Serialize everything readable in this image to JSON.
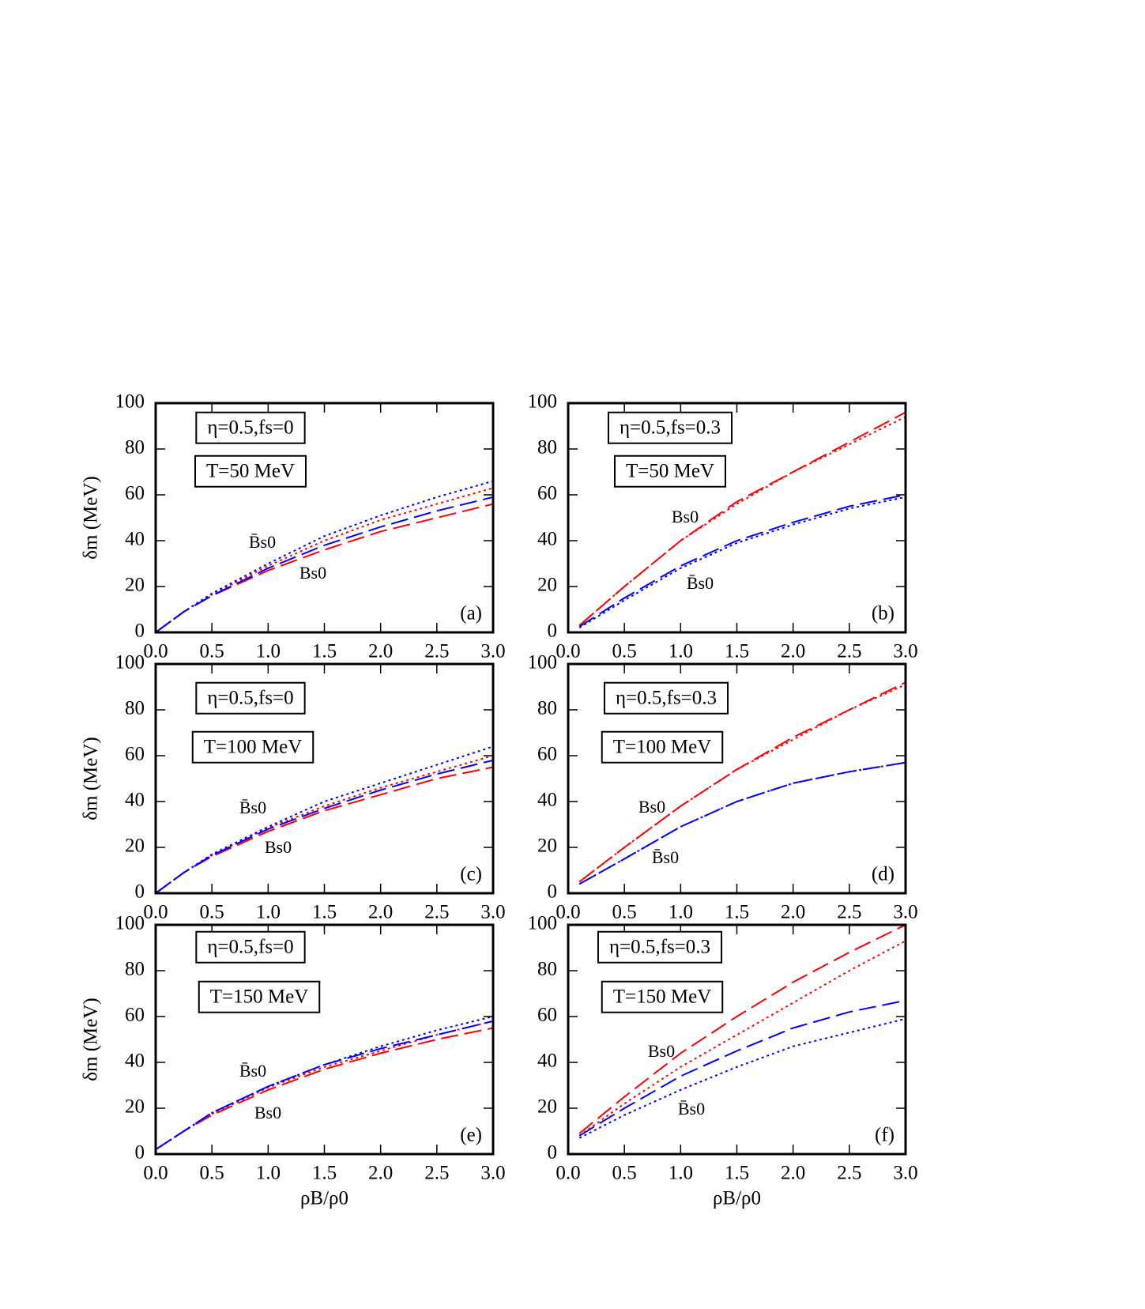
{
  "chart_data": [
    {
      "type": "line",
      "ylabel": "δm (MeV)",
      "annotations": [
        "η=0.5,fs=0",
        "T=50 MeV"
      ],
      "panel_label": "(a)",
      "curve_labels": [
        "B̄s0",
        "Bs0"
      ],
      "x": [
        0,
        0.25,
        0.5,
        1,
        1.5,
        2,
        2.5,
        3
      ],
      "xlim": [
        0,
        3
      ],
      "ylim": [
        0,
        100
      ],
      "xticks": [
        {
          "value": 0,
          "label": "0.0"
        },
        {
          "value": 0.5,
          "label": "0.5"
        },
        {
          "value": 1,
          "label": "1.0"
        },
        {
          "value": 1.5,
          "label": "1.5"
        },
        {
          "value": 2,
          "label": "2.0"
        },
        {
          "value": 2.5,
          "label": "2.5"
        },
        {
          "value": 3,
          "label": "3.0"
        }
      ],
      "yticks": [
        0,
        20,
        40,
        60,
        80,
        100
      ],
      "series": [
        {
          "color": "#ff0000",
          "dash": "dashed",
          "values": [
            0,
            9,
            16,
            27,
            36,
            44,
            50,
            56
          ]
        },
        {
          "color": "#ff0000",
          "dash": "dotted",
          "values": [
            0,
            9,
            16.5,
            29,
            40,
            49,
            56,
            63
          ]
        },
        {
          "color": "#0000ff",
          "dash": "dashed",
          "values": [
            0,
            9,
            16,
            28,
            38,
            46,
            53,
            59
          ]
        },
        {
          "color": "#0000ff",
          "dash": "dotted",
          "values": [
            0,
            9,
            17,
            30,
            42,
            51,
            59,
            66
          ]
        }
      ]
    },
    {
      "type": "line",
      "annotations": [
        "η=0.5,fs=0.3",
        "T=50 MeV"
      ],
      "panel_label": "(b)",
      "curve_labels": [
        "Bs0",
        "B̄s0"
      ],
      "x": [
        0.1,
        0.5,
        1,
        1.5,
        2,
        2.5,
        3
      ],
      "xlim": [
        0,
        3
      ],
      "ylim": [
        0,
        100
      ],
      "xticks": [
        {
          "value": 0,
          "label": "0.0"
        },
        {
          "value": 0.5,
          "label": "0.5"
        },
        {
          "value": 1,
          "label": "1.0"
        },
        {
          "value": 1.5,
          "label": "1.5"
        },
        {
          "value": 2,
          "label": "2.0"
        },
        {
          "value": 2.5,
          "label": "2.5"
        },
        {
          "value": 3,
          "label": "3.0"
        }
      ],
      "yticks": [
        0,
        20,
        40,
        60,
        80,
        100
      ],
      "series": [
        {
          "color": "#ff0000",
          "dash": "dashed",
          "values": [
            3,
            20,
            40,
            57,
            70,
            83,
            96
          ]
        },
        {
          "color": "#ff0000",
          "dash": "dotted",
          "values": [
            3,
            20,
            40,
            56,
            70,
            82,
            94
          ]
        },
        {
          "color": "#0000ff",
          "dash": "dashed",
          "values": [
            2.5,
            15,
            29,
            40,
            48,
            55,
            60
          ]
        },
        {
          "color": "#0000ff",
          "dash": "dotted",
          "values": [
            2,
            14,
            28,
            39,
            47,
            54,
            59
          ]
        }
      ]
    },
    {
      "type": "line",
      "ylabel": "δm (MeV)",
      "annotations": [
        "η=0.5,fs=0",
        "T=100 MeV"
      ],
      "panel_label": "(c)",
      "curve_labels": [
        "B̄s0",
        "Bs0"
      ],
      "x": [
        0,
        0.25,
        0.5,
        1,
        1.5,
        2,
        2.5,
        3
      ],
      "xlim": [
        0,
        3
      ],
      "ylim": [
        0,
        100
      ],
      "xticks": [
        {
          "value": 0,
          "label": "0.0"
        },
        {
          "value": 0.5,
          "label": "0.5"
        },
        {
          "value": 1,
          "label": "1.0"
        },
        {
          "value": 1.5,
          "label": "1.5"
        },
        {
          "value": 2,
          "label": "2.0"
        },
        {
          "value": 2.5,
          "label": "2.5"
        },
        {
          "value": 3,
          "label": "3.0"
        }
      ],
      "yticks": [
        0,
        20,
        40,
        60,
        80,
        100
      ],
      "series": [
        {
          "color": "#ff0000",
          "dash": "dashed",
          "values": [
            0,
            9,
            16,
            27,
            36,
            43,
            50,
            55
          ]
        },
        {
          "color": "#ff0000",
          "dash": "dotted",
          "values": [
            0,
            9,
            16.5,
            28.5,
            38,
            46,
            53,
            60
          ]
        },
        {
          "color": "#0000ff",
          "dash": "dashed",
          "values": [
            0,
            9,
            16.5,
            28,
            37,
            45,
            52,
            58
          ]
        },
        {
          "color": "#0000ff",
          "dash": "dotted",
          "values": [
            0,
            9,
            17,
            29,
            40,
            48,
            56,
            64
          ]
        }
      ]
    },
    {
      "type": "line",
      "annotations": [
        "η=0.5,fs=0.3",
        "T=100 MeV"
      ],
      "panel_label": "(d)",
      "curve_labels": [
        "Bs0",
        "B̄s0"
      ],
      "x": [
        0.1,
        0.5,
        1,
        1.5,
        2,
        2.5,
        3
      ],
      "xlim": [
        0,
        3
      ],
      "ylim": [
        0,
        100
      ],
      "xticks": [
        {
          "value": 0,
          "label": "0.0"
        },
        {
          "value": 0.5,
          "label": "0.5"
        },
        {
          "value": 1,
          "label": "1.0"
        },
        {
          "value": 1.5,
          "label": "1.5"
        },
        {
          "value": 2,
          "label": "2.0"
        },
        {
          "value": 2.5,
          "label": "2.5"
        },
        {
          "value": 3,
          "label": "3.0"
        }
      ],
      "yticks": [
        0,
        20,
        40,
        60,
        80,
        100
      ],
      "series": [
        {
          "color": "#ff0000",
          "dash": "dashed",
          "values": [
            5,
            20,
            38,
            54,
            68,
            80,
            92
          ]
        },
        {
          "color": "#ff0000",
          "dash": "dotted",
          "values": [
            5,
            20,
            38,
            54,
            67,
            80,
            91
          ]
        },
        {
          "color": "#0000ff",
          "dash": "dashed",
          "values": [
            4,
            15,
            29,
            40,
            48,
            53,
            57
          ]
        },
        {
          "color": "#0000ff",
          "dash": "dotted",
          "values": [
            4,
            15,
            29,
            40,
            48,
            53,
            57
          ]
        }
      ]
    },
    {
      "type": "line",
      "ylabel": "δm (MeV)",
      "xlabel": "ρB/ρ0",
      "annotations": [
        "η=0.5,fs=0",
        "T=150 MeV"
      ],
      "panel_label": "(e)",
      "curve_labels": [
        "B̄s0",
        "Bs0"
      ],
      "x": [
        0,
        0.25,
        0.5,
        1,
        1.5,
        2,
        2.5,
        3
      ],
      "xlim": [
        0,
        3
      ],
      "ylim": [
        0,
        100
      ],
      "xticks": [
        {
          "value": 0,
          "label": "0.0"
        },
        {
          "value": 0.5,
          "label": "0.5"
        },
        {
          "value": 1,
          "label": "1.0"
        },
        {
          "value": 1.5,
          "label": "1.5"
        },
        {
          "value": 2,
          "label": "2.0"
        },
        {
          "value": 2.5,
          "label": "2.5"
        },
        {
          "value": 3,
          "label": "3.0"
        }
      ],
      "yticks": [
        0,
        20,
        40,
        60,
        80,
        100
      ],
      "series": [
        {
          "color": "#ff0000",
          "dash": "dashed",
          "values": [
            2,
            10,
            17,
            28,
            37,
            44,
            50,
            55
          ]
        },
        {
          "color": "#ff0000",
          "dash": "dotted",
          "values": [
            2,
            10,
            17.5,
            29,
            38,
            45,
            52,
            58
          ]
        },
        {
          "color": "#0000ff",
          "dash": "dashed",
          "values": [
            2,
            10,
            18,
            29.5,
            39,
            46,
            52,
            58
          ]
        },
        {
          "color": "#0000ff",
          "dash": "dotted",
          "values": [
            2,
            10,
            18,
            29.5,
            39,
            47,
            54,
            60
          ]
        }
      ]
    },
    {
      "type": "line",
      "xlabel": "ρB/ρ0",
      "annotations": [
        "η=0.5,fs=0.3",
        "T=150 MeV"
      ],
      "panel_label": "(f)",
      "curve_labels": [
        "Bs0",
        "B̄s0"
      ],
      "x": [
        0.1,
        0.5,
        1,
        1.5,
        2,
        2.5,
        3
      ],
      "xlim": [
        0,
        3
      ],
      "ylim": [
        0,
        100
      ],
      "xticks": [
        {
          "value": 0,
          "label": "0.0"
        },
        {
          "value": 0.5,
          "label": "0.5"
        },
        {
          "value": 1,
          "label": "1.0"
        },
        {
          "value": 1.5,
          "label": "1.5"
        },
        {
          "value": 2,
          "label": "2.0"
        },
        {
          "value": 2.5,
          "label": "2.5"
        },
        {
          "value": 3,
          "label": "3.0"
        }
      ],
      "yticks": [
        0,
        20,
        40,
        60,
        80,
        100
      ],
      "series": [
        {
          "color": "#ff0000",
          "dash": "dashed",
          "values": [
            9,
            25,
            44,
            60,
            75,
            88,
            100
          ]
        },
        {
          "color": "#ff0000",
          "dash": "dotted",
          "values": [
            8,
            22,
            38,
            52,
            66,
            80,
            93
          ]
        },
        {
          "color": "#0000ff",
          "dash": "dashed",
          "values": [
            8,
            20,
            34,
            45,
            55,
            62,
            67
          ]
        },
        {
          "color": "#0000ff",
          "dash": "dotted",
          "values": [
            7,
            17,
            28,
            38,
            47,
            53,
            59
          ]
        }
      ]
    }
  ]
}
